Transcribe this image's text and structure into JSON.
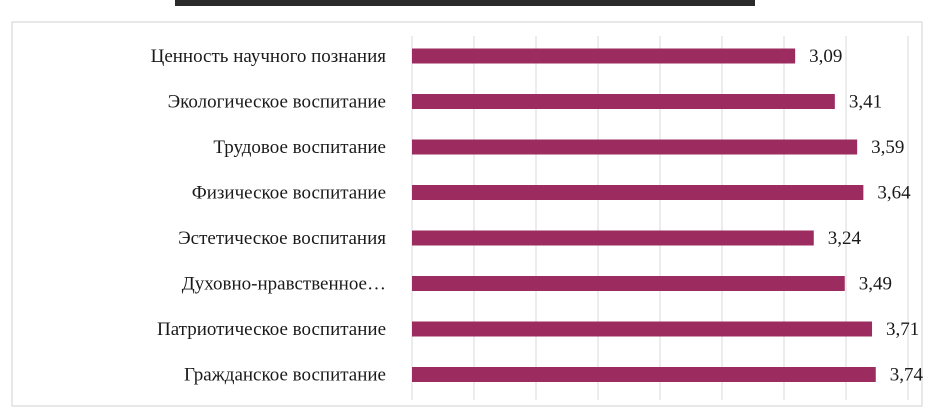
{
  "chart_data": {
    "type": "bar",
    "orientation": "horizontal",
    "title": "",
    "xlabel": "",
    "ylabel": "",
    "categories": [
      "Ценность научного познания",
      "Экологическое воспитание",
      "Трудовое воспитание",
      "Физическое воспитание",
      "Эстетическое воспитания",
      "Духовно-нравственное…",
      "Патриотическое воспитание",
      "Гражданское воспитание"
    ],
    "values": [
      3.09,
      3.41,
      3.59,
      3.64,
      3.24,
      3.49,
      3.71,
      3.74
    ],
    "value_labels": [
      "3,09",
      "3,41",
      "3,59",
      "3,64",
      "3,24",
      "3,49",
      "3,71",
      "3,74"
    ],
    "xlim": [
      0,
      4
    ],
    "grid": true,
    "legend": "none",
    "bar_color": "#9c2b5f"
  }
}
